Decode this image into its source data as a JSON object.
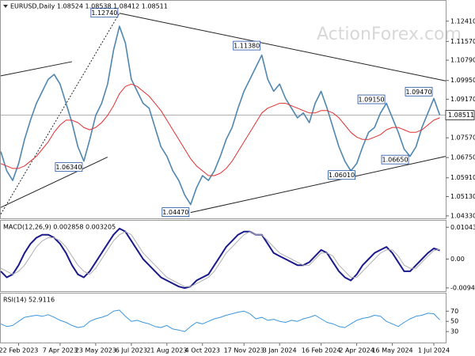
{
  "watermark": "ActionForex.com",
  "chart_data": [
    {
      "type": "line",
      "title": "EURUSD,Daily 1.08524 1.08538 1.08412 1.08511",
      "xlim": [
        0,
        75
      ],
      "ylim": [
        1.0426,
        1.1319
      ],
      "yticks": [
        {
          "value": 1.1241,
          "label": "1.12410"
        },
        {
          "value": 1.1157,
          "label": "1.11570"
        },
        {
          "value": 1.1079,
          "label": "1.10790"
        },
        {
          "value": 1.0995,
          "label": "1.09950"
        },
        {
          "value": 1.0917,
          "label": "1.09170"
        },
        {
          "value": 1.0757,
          "label": "1.07570"
        },
        {
          "value": 1.0675,
          "label": "1.06750"
        },
        {
          "value": 1.0591,
          "label": "1.05910"
        },
        {
          "value": 1.0513,
          "label": "1.05130"
        },
        {
          "value": 1.0433,
          "label": "1.04330"
        }
      ],
      "xticks": [
        {
          "value": 3,
          "label": "22 Feb 2023"
        },
        {
          "value": 10,
          "label": "7 Apr 2023"
        },
        {
          "value": 16,
          "label": "23 May 2023"
        },
        {
          "value": 22,
          "label": "6 Jul 2023"
        },
        {
          "value": 28,
          "label": "21 Aug 2023"
        },
        {
          "value": 34,
          "label": "4 Oct 2023"
        },
        {
          "value": 41,
          "label": "17 Nov 2023"
        },
        {
          "value": 47,
          "label": "3 Jan 2024"
        },
        {
          "value": 54,
          "label": "16 Feb 2024"
        },
        {
          "value": 60,
          "label": "2 Apr 2024"
        },
        {
          "value": 66,
          "label": "16 May 2024"
        },
        {
          "value": 73,
          "label": "1 Jul 2024"
        }
      ],
      "last": {
        "value": 1.08511,
        "label": "1.08511"
      },
      "series": [
        {
          "color": "#4f86b0",
          "width": 1.6,
          "values": [
            1.07,
            1.062,
            1.058,
            1.065,
            1.075,
            1.083,
            1.09,
            1.095,
            1.1,
            1.102,
            1.098,
            1.09,
            1.082,
            1.072,
            1.066,
            1.075,
            1.085,
            1.09,
            1.098,
            1.112,
            1.122,
            1.115,
            1.1,
            1.095,
            1.09,
            1.088,
            1.08,
            1.072,
            1.068,
            1.062,
            1.058,
            1.052,
            1.048,
            1.055,
            1.06,
            1.058,
            1.062,
            1.068,
            1.075,
            1.08,
            1.088,
            1.095,
            1.1,
            1.105,
            1.11,
            1.1,
            1.095,
            1.098,
            1.092,
            1.088,
            1.084,
            1.086,
            1.082,
            1.09,
            1.095,
            1.088,
            1.08,
            1.072,
            1.066,
            1.062,
            1.065,
            1.072,
            1.078,
            1.08,
            1.086,
            1.09,
            1.084,
            1.078,
            1.071,
            1.068,
            1.072,
            1.08,
            1.086,
            1.092,
            1.0851
          ]
        },
        {
          "color": "#e03030",
          "width": 1,
          "values": [
            1.065,
            1.064,
            1.063,
            1.063,
            1.064,
            1.066,
            1.068,
            1.071,
            1.074,
            1.078,
            1.081,
            1.083,
            1.083,
            1.082,
            1.08,
            1.079,
            1.08,
            1.082,
            1.085,
            1.089,
            1.094,
            1.097,
            1.098,
            1.097,
            1.095,
            1.093,
            1.09,
            1.087,
            1.083,
            1.079,
            1.075,
            1.071,
            1.067,
            1.064,
            1.062,
            1.06,
            1.06,
            1.061,
            1.063,
            1.066,
            1.07,
            1.074,
            1.078,
            1.082,
            1.086,
            1.088,
            1.089,
            1.09,
            1.09,
            1.089,
            1.088,
            1.087,
            1.086,
            1.086,
            1.087,
            1.087,
            1.086,
            1.084,
            1.081,
            1.078,
            1.076,
            1.075,
            1.075,
            1.076,
            1.077,
            1.079,
            1.08,
            1.08,
            1.079,
            1.078,
            1.078,
            1.079,
            1.081,
            1.083,
            1.084
          ]
        }
      ],
      "trendlines": [
        {
          "x": [
            0,
            12
          ],
          "y": [
            1.1014,
            1.1073
          ]
        },
        {
          "x": [
            0,
            18
          ],
          "y": [
            1.0468,
            1.0677
          ]
        },
        {
          "x": [
            0,
            20
          ],
          "y": [
            1.044,
            1.1274
          ],
          "style": "dashed"
        },
        {
          "x": [
            20,
            75
          ],
          "y": [
            1.1274,
            1.0993
          ]
        },
        {
          "x": [
            32,
            75
          ],
          "y": [
            1.0447,
            1.068
          ]
        }
      ],
      "annotations": [
        {
          "x": 20,
          "value": 1.1274,
          "label": "1.12740"
        },
        {
          "x": 44,
          "value": 1.1138,
          "label": "1.11380"
        },
        {
          "x": 73,
          "value": 1.0947,
          "label": "1.09470"
        },
        {
          "x": 65,
          "value": 1.0915,
          "label": "1.09150"
        },
        {
          "x": 14,
          "value": 1.0634,
          "label": "1.06340"
        },
        {
          "x": 60,
          "value": 1.0601,
          "label": "1.06010"
        },
        {
          "x": 69,
          "value": 1.0665,
          "label": "1.06650"
        },
        {
          "x": 32,
          "value": 1.0447,
          "label": "1.04470"
        }
      ]
    },
    {
      "type": "line",
      "title": "MACD(12,26,9) 0.002858 0.003205",
      "xlim": [
        0,
        75
      ],
      "ylim": [
        -0.0105,
        0.0118
      ],
      "yticks": [
        0.010434,
        {
          "value": 0,
          "label": "0.00"
        },
        -0.009436
      ],
      "series": [
        {
          "color": "#1a1a8c",
          "width": 2,
          "values": [
            -0.004,
            -0.006,
            -0.005,
            -0.002,
            0.002,
            0.005,
            0.007,
            0.008,
            0.008,
            0.007,
            0.005,
            0.002,
            -0.002,
            -0.005,
            -0.006,
            -0.004,
            -0.001,
            0.002,
            0.005,
            0.008,
            0.01,
            0.009,
            0.006,
            0.003,
            0.0,
            -0.002,
            -0.004,
            -0.006,
            -0.007,
            -0.008,
            -0.009,
            -0.0095,
            -0.009,
            -0.007,
            -0.006,
            -0.005,
            -0.002,
            0.001,
            0.004,
            0.006,
            0.008,
            0.009,
            0.009,
            0.008,
            0.008,
            0.005,
            0.002,
            0.001,
            0.0,
            -0.001,
            -0.002,
            -0.002,
            -0.001,
            0.001,
            0.003,
            0.002,
            -0.001,
            -0.004,
            -0.006,
            -0.007,
            -0.005,
            -0.002,
            0.0,
            0.002,
            0.003,
            0.004,
            0.002,
            -0.001,
            -0.004,
            -0.004,
            -0.002,
            0.0,
            0.002,
            0.0035,
            0.002858
          ]
        },
        {
          "color": "#b0b0b0",
          "width": 1,
          "values": [
            -0.003,
            -0.004,
            -0.005,
            -0.004,
            -0.002,
            0.001,
            0.004,
            0.006,
            0.007,
            0.007,
            0.006,
            0.004,
            0.001,
            -0.002,
            -0.004,
            -0.005,
            -0.003,
            0.0,
            0.003,
            0.006,
            0.008,
            0.009,
            0.008,
            0.005,
            0.002,
            0.0,
            -0.002,
            -0.004,
            -0.006,
            -0.007,
            -0.008,
            -0.009,
            -0.009,
            -0.008,
            -0.007,
            -0.006,
            -0.004,
            -0.001,
            0.002,
            0.004,
            0.006,
            0.008,
            0.009,
            0.008,
            0.008,
            0.006,
            0.004,
            0.002,
            0.001,
            0.0,
            -0.001,
            -0.002,
            -0.002,
            0.0,
            0.002,
            0.002,
            0.001,
            -0.002,
            -0.004,
            -0.006,
            -0.006,
            -0.004,
            -0.002,
            0.0,
            0.002,
            0.003,
            0.003,
            0.001,
            -0.002,
            -0.003,
            -0.003,
            -0.001,
            0.001,
            0.0028,
            0.003205
          ]
        }
      ]
    },
    {
      "type": "line",
      "title": "RSI(14) 52.9116",
      "xlim": [
        0,
        75
      ],
      "ylim": [
        10,
        100
      ],
      "yticks": [
        70,
        50,
        30
      ],
      "series": [
        {
          "color": "#3c96dc",
          "width": 1,
          "values": [
            45,
            40,
            42,
            50,
            58,
            60,
            62,
            60,
            63,
            58,
            52,
            48,
            42,
            38,
            40,
            50,
            55,
            58,
            62,
            70,
            72,
            60,
            50,
            52,
            48,
            45,
            40,
            38,
            42,
            35,
            33,
            30,
            40,
            48,
            45,
            50,
            55,
            58,
            62,
            65,
            68,
            70,
            65,
            55,
            58,
            52,
            54,
            50,
            48,
            52,
            50,
            55,
            58,
            62,
            55,
            48,
            45,
            40,
            38,
            45,
            52,
            56,
            58,
            62,
            60,
            50,
            45,
            40,
            48,
            55,
            60,
            62,
            66,
            65,
            52.9116
          ]
        }
      ]
    }
  ]
}
